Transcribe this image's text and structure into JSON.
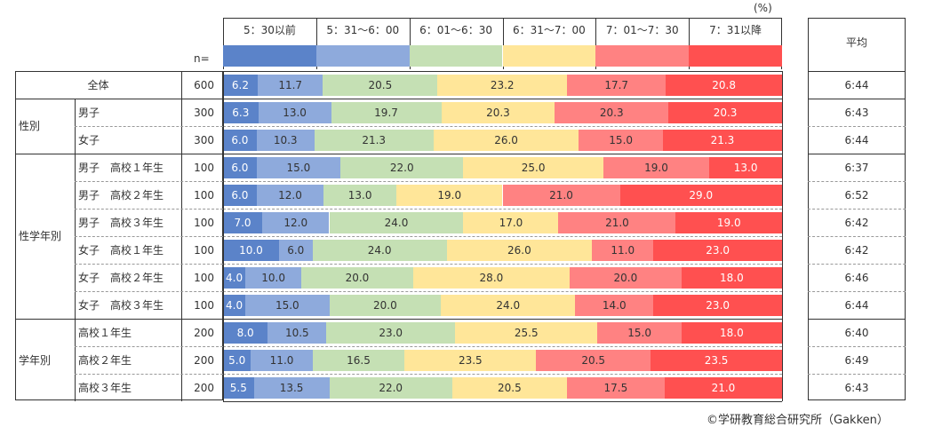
{
  "chart_data": {
    "type": "bar",
    "orientation": "horizontal-stacked-100",
    "unit_label": "(%)",
    "n_label": "n=",
    "average_header": "平均",
    "categories": [
      "5：30以前",
      "5：31〜6：00",
      "6：01〜6：30",
      "6：31〜7：00",
      "7：01〜7：30",
      "7：31以降"
    ],
    "colors": [
      "#5b83c9",
      "#8eaadc",
      "#c5e0b4",
      "#ffe699",
      "#ff8282",
      "#ff5050"
    ],
    "label_colors": [
      "#ffffff",
      "#333333",
      "#333333",
      "#333333",
      "#333333",
      "#ffffff"
    ],
    "groups": [
      {
        "label": "",
        "rows": [
          0
        ]
      },
      {
        "label": "性別",
        "rows": [
          1,
          2
        ]
      },
      {
        "label": "性学年別",
        "rows": [
          3,
          4,
          5,
          6,
          7,
          8
        ]
      },
      {
        "label": "学年別",
        "rows": [
          9,
          10,
          11
        ]
      }
    ],
    "rows": [
      {
        "label": "全体",
        "n": "600",
        "values": [
          6.2,
          11.7,
          20.5,
          23.2,
          17.7,
          20.8
        ],
        "average": "6:44"
      },
      {
        "label": "男子",
        "n": "300",
        "values": [
          6.3,
          13.0,
          19.7,
          20.3,
          20.3,
          20.3
        ],
        "average": "6:43"
      },
      {
        "label": "女子",
        "n": "300",
        "values": [
          6.0,
          10.3,
          21.3,
          26.0,
          15.0,
          21.3
        ],
        "average": "6:44"
      },
      {
        "label": "男子　高校１年生",
        "n": "100",
        "values": [
          6.0,
          15.0,
          22.0,
          25.0,
          19.0,
          13.0
        ],
        "average": "6:37"
      },
      {
        "label": "男子　高校２年生",
        "n": "100",
        "values": [
          6.0,
          12.0,
          13.0,
          19.0,
          21.0,
          29.0
        ],
        "average": "6:52"
      },
      {
        "label": "男子　高校３年生",
        "n": "100",
        "values": [
          7.0,
          12.0,
          24.0,
          17.0,
          21.0,
          19.0
        ],
        "average": "6:42"
      },
      {
        "label": "女子　高校１年生",
        "n": "100",
        "values": [
          10.0,
          6.0,
          24.0,
          26.0,
          11.0,
          23.0
        ],
        "average": "6:42"
      },
      {
        "label": "女子　高校２年生",
        "n": "100",
        "values": [
          4.0,
          10.0,
          20.0,
          28.0,
          20.0,
          18.0
        ],
        "average": "6:46"
      },
      {
        "label": "女子　高校３年生",
        "n": "100",
        "values": [
          4.0,
          15.0,
          20.0,
          24.0,
          14.0,
          23.0
        ],
        "average": "6:44"
      },
      {
        "label": "高校１年生",
        "n": "200",
        "values": [
          8.0,
          10.5,
          23.0,
          25.5,
          15.0,
          18.0
        ],
        "average": "6:40"
      },
      {
        "label": "高校２年生",
        "n": "200",
        "values": [
          5.0,
          11.0,
          16.5,
          23.5,
          20.5,
          23.5
        ],
        "average": "6:49"
      },
      {
        "label": "高校３年生",
        "n": "200",
        "values": [
          5.5,
          13.5,
          22.0,
          20.5,
          17.5,
          21.0
        ],
        "average": "6:43"
      }
    ],
    "xlim": [
      0,
      100
    ],
    "grid": false,
    "legend": "top"
  },
  "footer": {
    "copyright": "©学研教育総合研究所（Gakken）"
  }
}
